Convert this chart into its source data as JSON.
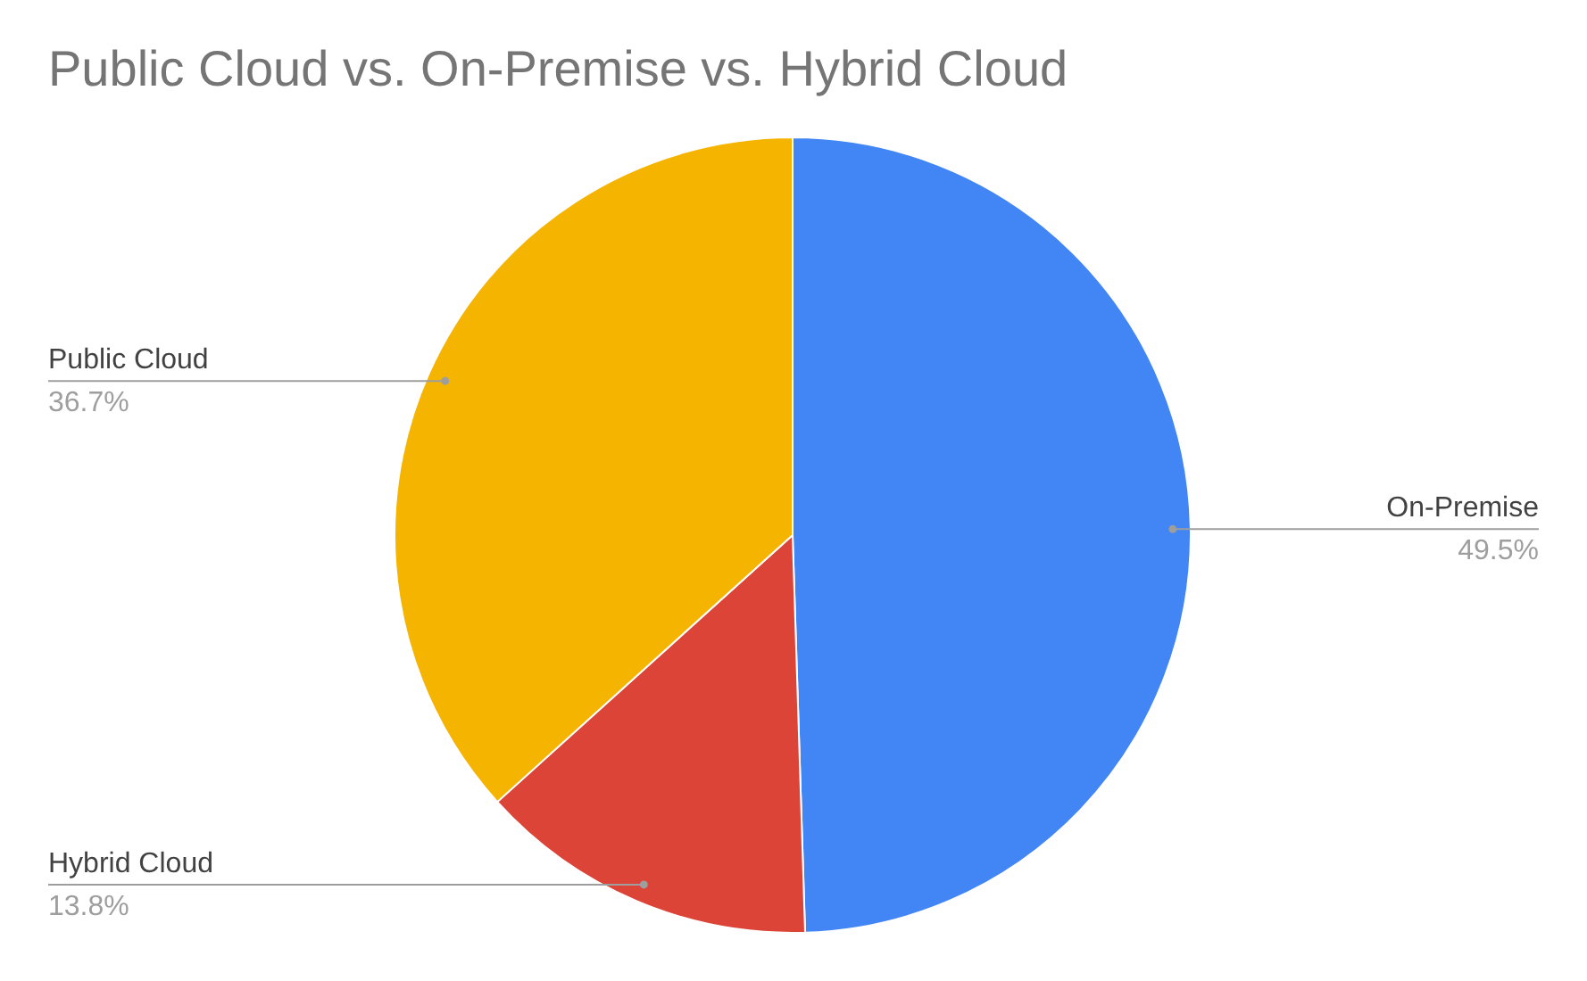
{
  "chart_data": {
    "type": "pie",
    "title": "Public Cloud vs. On-Premise vs. Hybrid Cloud",
    "categories": [
      "On-Premise",
      "Hybrid Cloud",
      "Public Cloud"
    ],
    "values": [
      49.5,
      13.8,
      36.7
    ],
    "colors": [
      "#4285f4",
      "#db4437",
      "#f4b400"
    ],
    "value_labels": [
      "49.5%",
      "13.8%",
      "36.7%"
    ]
  }
}
